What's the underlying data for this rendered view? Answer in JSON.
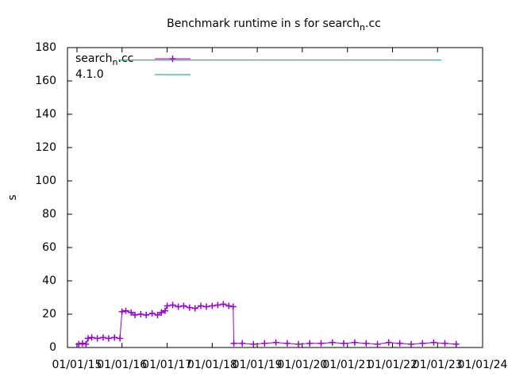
{
  "chart_data": {
    "type": "line",
    "title": "Benchmark runtime in s for search_n.cc",
    "y_label": "s",
    "xlim": [
      "2014-10-16",
      "2024-01-01"
    ],
    "xticks": [
      {
        "value": "2015-01-01",
        "label": "01/01/15"
      },
      {
        "value": "2016-01-01",
        "label": "01/01/16"
      },
      {
        "value": "2017-01-01",
        "label": "01/01/17"
      },
      {
        "value": "2018-01-01",
        "label": "01/01/18"
      },
      {
        "value": "2019-01-01",
        "label": "01/01/19"
      },
      {
        "value": "2020-01-01",
        "label": "01/01/20"
      },
      {
        "value": "2021-01-01",
        "label": "01/01/21"
      },
      {
        "value": "2022-01-01",
        "label": "01/01/22"
      },
      {
        "value": "2023-01-01",
        "label": "01/01/23"
      },
      {
        "value": "2024-01-01",
        "label": "01/01/24"
      }
    ],
    "ylim": [
      0,
      180
    ],
    "yticks": [
      0,
      20,
      40,
      60,
      80,
      100,
      120,
      140,
      160,
      180
    ],
    "legend": "top-left",
    "series": [
      {
        "name": "search_n.cc",
        "color": "#9400d3",
        "markers": true,
        "x": [
          "2015-01-15",
          "2015-02-15",
          "2015-03-15",
          "2015-04-01",
          "2015-05-01",
          "2015-06-15",
          "2015-08-01",
          "2015-09-15",
          "2015-11-01",
          "2015-12-15",
          "2016-01-01",
          "2016-02-01",
          "2016-03-15",
          "2016-04-15",
          "2016-06-01",
          "2016-07-15",
          "2016-09-01",
          "2016-10-15",
          "2016-11-15",
          "2016-12-15",
          "2017-01-01",
          "2017-02-15",
          "2017-04-01",
          "2017-05-15",
          "2017-07-01",
          "2017-08-15",
          "2017-10-01",
          "2017-11-15",
          "2018-01-01",
          "2018-02-15",
          "2018-04-01",
          "2018-05-15",
          "2018-06-20",
          "2018-06-25",
          "2018-09-01",
          "2018-12-01",
          "2019-03-01",
          "2019-06-01",
          "2019-09-01",
          "2019-12-01",
          "2020-03-01",
          "2020-06-01",
          "2020-09-01",
          "2020-12-01",
          "2021-03-01",
          "2021-06-01",
          "2021-09-01",
          "2021-12-01",
          "2022-03-01",
          "2022-06-01",
          "2022-09-01",
          "2022-12-01",
          "2023-03-01",
          "2023-06-01"
        ],
        "values": [
          2,
          2.5,
          2,
          5.5,
          6,
          5.5,
          6,
          5.5,
          6,
          5.5,
          21.5,
          22,
          21,
          19.5,
          20,
          19.5,
          20.5,
          19.5,
          21,
          22,
          25,
          25.5,
          24.5,
          25,
          24,
          23.5,
          25,
          24.5,
          25,
          25.5,
          26,
          25,
          24.5,
          2.5,
          2.5,
          2,
          2.5,
          3,
          2.5,
          2,
          2.5,
          2.5,
          3,
          2.5,
          3,
          2.5,
          2,
          3,
          2.5,
          2,
          2.5,
          3,
          2.5,
          2
        ]
      },
      {
        "name": "4.1.0",
        "color": "#009e73",
        "markers": false,
        "x": [
          "2015-12-01",
          "2023-02-01"
        ],
        "values": [
          172.5,
          172.5
        ]
      }
    ]
  }
}
